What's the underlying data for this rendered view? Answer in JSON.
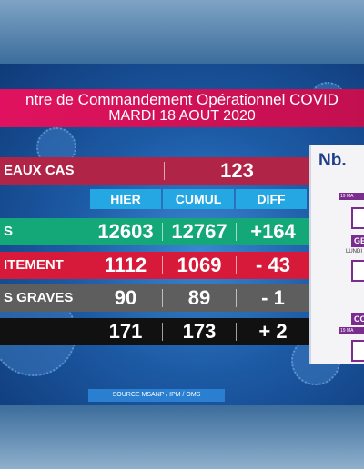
{
  "header": {
    "line1": "ntre de Commandement Opérationnel COVID",
    "line2": "MARDI 18 AOUT 2020"
  },
  "columns": {
    "hier": "HIER",
    "cumul": "CUMUL",
    "diff": "DIFF"
  },
  "new_cases": {
    "label": "EAUX CAS",
    "value": "123"
  },
  "rows": [
    {
      "label": "S",
      "hier": "12603",
      "cumul": "12767",
      "diff": "+164",
      "color": "#14a878"
    },
    {
      "label": "ITEMENT",
      "hier": "1112",
      "cumul": "1069",
      "diff": "- 43",
      "color": "#d81a3a"
    },
    {
      "label": "S GRAVES",
      "hier": "90",
      "cumul": "89",
      "diff": "- 1",
      "color": "#5e5e5e"
    },
    {
      "label": "",
      "hier": "171",
      "cumul": "173",
      "diff": "+ 2",
      "color": "#111111"
    }
  ],
  "source": "SOURCE MSANP / IPM / OMS",
  "side_panel": {
    "title": "Nb.",
    "bar1": "19 MA",
    "tag1": "GE",
    "sub1": "LUNDI",
    "tag2": "CO",
    "bar2": "19 MA"
  },
  "colors": {
    "header": "#e0125f",
    "new_cases_bg": "#b02448",
    "column_head": "#24a7e3",
    "accent_purple": "#7a2c8f"
  }
}
